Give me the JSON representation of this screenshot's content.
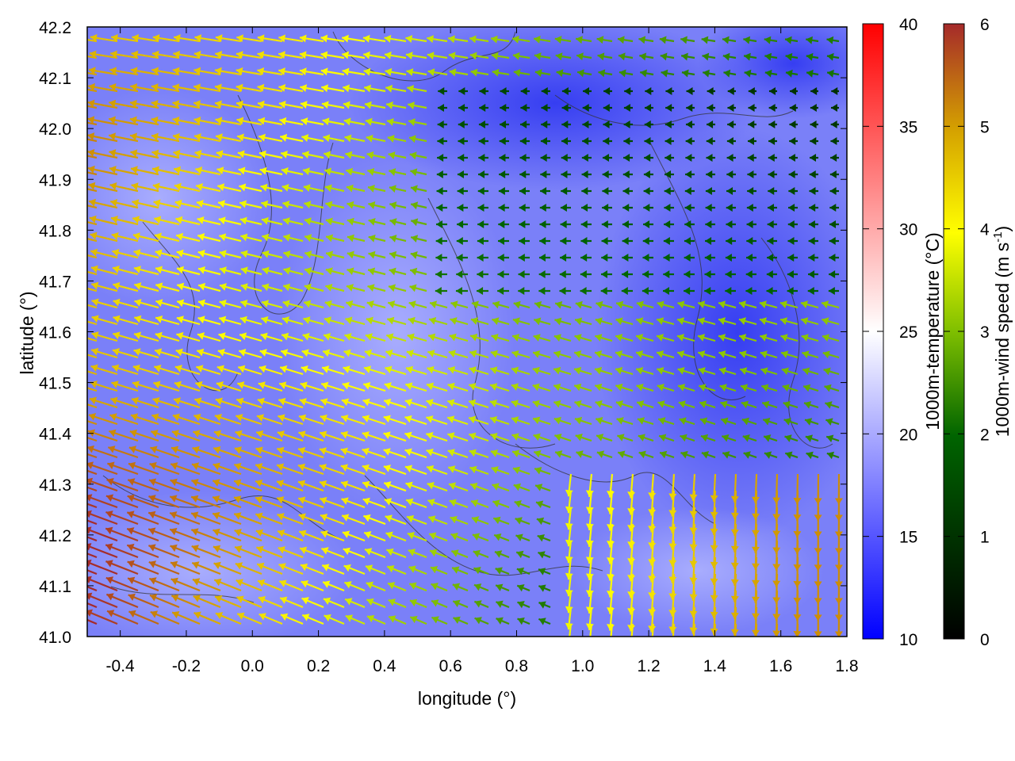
{
  "chart_data": {
    "type": "heatmap",
    "description_overlay": "vector",
    "xlabel": "longitude (°)",
    "ylabel": "latitude (°)",
    "xlim": [
      -0.5,
      1.8
    ],
    "ylim": [
      41.0,
      42.2
    ],
    "x_ticks": [
      "-0.4",
      "-0.2",
      "0.0",
      "0.2",
      "0.4",
      "0.6",
      "0.8",
      "1.0",
      "1.2",
      "1.4",
      "1.6",
      "1.8"
    ],
    "x_tick_values": [
      -0.4,
      -0.2,
      0.0,
      0.2,
      0.4,
      0.6,
      0.8,
      1.0,
      1.2,
      1.4,
      1.6,
      1.8
    ],
    "y_ticks": [
      "41.0",
      "41.1",
      "41.2",
      "41.3",
      "41.4",
      "41.5",
      "41.6",
      "41.7",
      "41.8",
      "41.9",
      "42.0",
      "42.1",
      "42.2"
    ],
    "y_tick_values": [
      41.0,
      41.1,
      41.2,
      41.3,
      41.4,
      41.5,
      41.6,
      41.7,
      41.8,
      41.9,
      42.0,
      42.1,
      42.2
    ],
    "grid": false,
    "temperature_colorbar": {
      "label": "1000m-temperature (°C)",
      "range": [
        10,
        40
      ],
      "ticks": [
        "10",
        "15",
        "20",
        "25",
        "30",
        "35",
        "40"
      ],
      "tick_values": [
        10,
        15,
        20,
        25,
        30,
        35,
        40
      ],
      "colors": [
        "#0000ff",
        "#ffffff",
        "#ff0000"
      ]
    },
    "wind_colorbar": {
      "label": "1000m-wind speed (m s",
      "label_sup": "-1",
      "label_end": ")",
      "range": [
        0,
        6
      ],
      "ticks": [
        "0",
        "1",
        "2",
        "3",
        "4",
        "5",
        "6"
      ],
      "tick_values": [
        0,
        1,
        2,
        3,
        4,
        5,
        6
      ],
      "colors": [
        "#000000",
        "#006400",
        "#7fbf00",
        "#ffff00",
        "#d4a000",
        "#a52a2a"
      ]
    },
    "temperature_field_approx_c": 16,
    "wind_field_summary": {
      "west_region_speed_m_s": 5.8,
      "northeast_calm_speed_m_s": 0.5,
      "southeast_speed_m_s": 4.5,
      "prevailing_direction": "from east"
    }
  }
}
